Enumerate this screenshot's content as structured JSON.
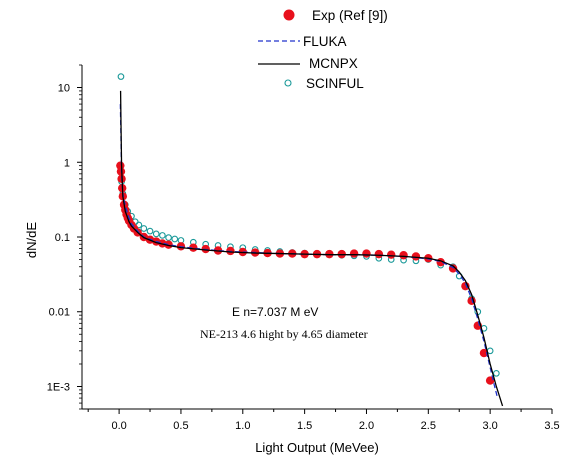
{
  "chart_data": {
    "type": "scatter",
    "xlabel": "Light Output (MeVee)",
    "ylabel": "dN/dE",
    "xlim": [
      -0.3,
      3.5
    ],
    "ylim": [
      0.0005,
      20
    ],
    "yscale": "log",
    "x_ticks": [
      {
        "value": 0.0,
        "label": "0.0"
      },
      {
        "value": 0.5,
        "label": "0.5"
      },
      {
        "value": 1.0,
        "label": "1.0"
      },
      {
        "value": 1.5,
        "label": "1.5"
      },
      {
        "value": 2.0,
        "label": "2.0"
      },
      {
        "value": 2.5,
        "label": "2.5"
      },
      {
        "value": 3.0,
        "label": "3.0"
      },
      {
        "value": 3.5,
        "label": "3.5"
      }
    ],
    "y_ticks": [
      {
        "value": 0.001,
        "label": "1E-3"
      },
      {
        "value": 0.01,
        "label": "0.01"
      },
      {
        "value": 0.1,
        "label": "0.1"
      },
      {
        "value": 1,
        "label": "1"
      },
      {
        "value": 10,
        "label": "10"
      }
    ],
    "grid": false,
    "legend_position": "top-center",
    "annotations": [
      "E n=7.037 M eV",
      "NE-213 4.6 hight by 4.65 diameter"
    ],
    "series": [
      {
        "name": "Exp (Ref [9])",
        "style": "marker",
        "marker": "filled-circle",
        "color": "#e8101c",
        "x": [
          0.01,
          0.015,
          0.02,
          0.025,
          0.03,
          0.04,
          0.05,
          0.06,
          0.07,
          0.08,
          0.1,
          0.12,
          0.15,
          0.2,
          0.25,
          0.3,
          0.35,
          0.4,
          0.5,
          0.6,
          0.7,
          0.8,
          0.9,
          1.0,
          1.1,
          1.2,
          1.3,
          1.4,
          1.5,
          1.6,
          1.7,
          1.8,
          1.9,
          2.0,
          2.1,
          2.2,
          2.3,
          2.4,
          2.5,
          2.6,
          2.7,
          2.8,
          2.85,
          2.9,
          2.95,
          3.0
        ],
        "y": [
          0.9,
          0.75,
          0.6,
          0.45,
          0.35,
          0.27,
          0.23,
          0.2,
          0.18,
          0.165,
          0.145,
          0.13,
          0.115,
          0.1,
          0.092,
          0.087,
          0.082,
          0.079,
          0.075,
          0.072,
          0.069,
          0.066,
          0.065,
          0.063,
          0.062,
          0.061,
          0.06,
          0.06,
          0.059,
          0.059,
          0.059,
          0.059,
          0.06,
          0.06,
          0.059,
          0.058,
          0.057,
          0.055,
          0.052,
          0.046,
          0.038,
          0.022,
          0.014,
          0.0065,
          0.0028,
          0.0012
        ]
      },
      {
        "name": "FLUKA",
        "style": "dashed-line",
        "color": "#2233cc",
        "x": [
          0.01,
          0.015,
          0.02,
          0.03,
          0.05,
          0.08,
          0.1,
          0.15,
          0.2,
          0.3,
          0.4,
          0.5,
          0.7,
          0.9,
          1.1,
          1.3,
          1.5,
          1.7,
          1.9,
          2.1,
          2.3,
          2.5,
          2.6,
          2.7,
          2.75,
          2.8,
          2.85,
          2.9,
          2.95,
          3.0,
          3.03,
          3.06
        ],
        "y": [
          6,
          2.2,
          0.7,
          0.38,
          0.26,
          0.18,
          0.15,
          0.12,
          0.1,
          0.087,
          0.079,
          0.074,
          0.068,
          0.064,
          0.062,
          0.06,
          0.059,
          0.058,
          0.058,
          0.057,
          0.055,
          0.051,
          0.047,
          0.039,
          0.032,
          0.024,
          0.015,
          0.008,
          0.004,
          0.0018,
          0.0011,
          0.0007
        ]
      },
      {
        "name": "MCNPX",
        "style": "solid-line",
        "color": "#000000",
        "x": [
          0.012,
          0.015,
          0.02,
          0.03,
          0.05,
          0.08,
          0.1,
          0.15,
          0.2,
          0.3,
          0.4,
          0.5,
          0.7,
          0.9,
          1.1,
          1.3,
          1.5,
          1.7,
          1.9,
          2.1,
          2.3,
          2.5,
          2.6,
          2.7,
          2.75,
          2.8,
          2.85,
          2.9,
          2.95,
          3.0,
          3.05,
          3.08,
          3.1
        ],
        "y": [
          9,
          3.5,
          0.9,
          0.35,
          0.22,
          0.16,
          0.14,
          0.115,
          0.098,
          0.084,
          0.077,
          0.072,
          0.067,
          0.063,
          0.061,
          0.06,
          0.059,
          0.058,
          0.058,
          0.057,
          0.055,
          0.052,
          0.048,
          0.041,
          0.034,
          0.026,
          0.017,
          0.009,
          0.0045,
          0.002,
          0.001,
          0.0007,
          0.00055
        ]
      },
      {
        "name": "SCINFUL",
        "style": "marker",
        "marker": "open-circle",
        "color": "#1a9999",
        "x": [
          0.015,
          0.02,
          0.03,
          0.05,
          0.07,
          0.1,
          0.13,
          0.16,
          0.2,
          0.25,
          0.3,
          0.35,
          0.4,
          0.45,
          0.5,
          0.6,
          0.7,
          0.8,
          0.9,
          1.0,
          1.1,
          1.2,
          1.3,
          1.4,
          1.5,
          1.6,
          1.7,
          1.8,
          1.9,
          2.0,
          2.1,
          2.2,
          2.3,
          2.4,
          2.5,
          2.6,
          2.7,
          2.75,
          2.8,
          2.85,
          2.9,
          2.95,
          3.0,
          3.05
        ],
        "y": [
          14,
          0.55,
          0.38,
          0.27,
          0.22,
          0.19,
          0.16,
          0.145,
          0.13,
          0.12,
          0.11,
          0.105,
          0.098,
          0.094,
          0.09,
          0.085,
          0.08,
          0.077,
          0.074,
          0.072,
          0.068,
          0.066,
          0.064,
          0.062,
          0.061,
          0.06,
          0.058,
          0.057,
          0.056,
          0.055,
          0.052,
          0.05,
          0.049,
          0.048,
          0.05,
          0.042,
          0.04,
          0.03,
          0.022,
          0.015,
          0.01,
          0.006,
          0.003,
          0.0015
        ]
      }
    ]
  }
}
